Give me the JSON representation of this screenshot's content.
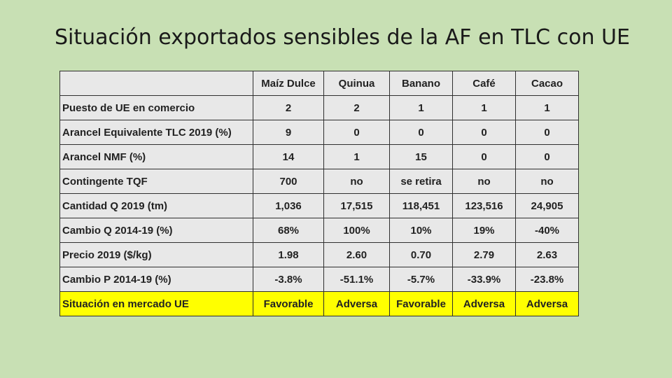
{
  "slide": {
    "title": "Situación exportados sensibles de la AF en TLC con UE"
  },
  "table": {
    "corner": "",
    "columns": [
      "Maíz Dulce",
      "Quinua",
      "Banano",
      "Café",
      "Cacao"
    ],
    "rows": [
      {
        "label": "Puesto de UE en comercio",
        "values": [
          "2",
          "2",
          "1",
          "1",
          "1"
        ]
      },
      {
        "label": "Arancel Equivalente TLC 2019 (%)",
        "values": [
          "9",
          "0",
          "0",
          "0",
          "0"
        ]
      },
      {
        "label": "Arancel NMF (%)",
        "values": [
          "14",
          "1",
          "15",
          "0",
          "0"
        ]
      },
      {
        "label": "Contingente TQF",
        "values": [
          "700",
          "no",
          "se retira",
          "no",
          "no"
        ]
      },
      {
        "label": "Cantidad Q 2019 (tm)",
        "values": [
          "1,036",
          "17,515",
          "118,451",
          "123,516",
          "24,905"
        ]
      },
      {
        "label": "Cambio Q 2014-19 (%)",
        "values": [
          "68%",
          "100%",
          "10%",
          "19%",
          "-40%"
        ]
      },
      {
        "label": "Precio 2019 ($/kg)",
        "values": [
          "1.98",
          "2.60",
          "0.70",
          "2.79",
          "2.63"
        ]
      },
      {
        "label": "Cambio P 2014-19 (%)",
        "values": [
          "-3.8%",
          "-51.1%",
          "-5.7%",
          "-33.9%",
          "-23.8%"
        ]
      },
      {
        "label": "Situación en mercado UE",
        "values": [
          "Favorable",
          "Adversa",
          "Favorable",
          "Adversa",
          "Adversa"
        ]
      }
    ]
  },
  "colors": {
    "background": "#c8e0b4",
    "cell_fill": "#e8e8e8",
    "highlight_row": "#ffff00",
    "border": "#2f2f2f"
  }
}
